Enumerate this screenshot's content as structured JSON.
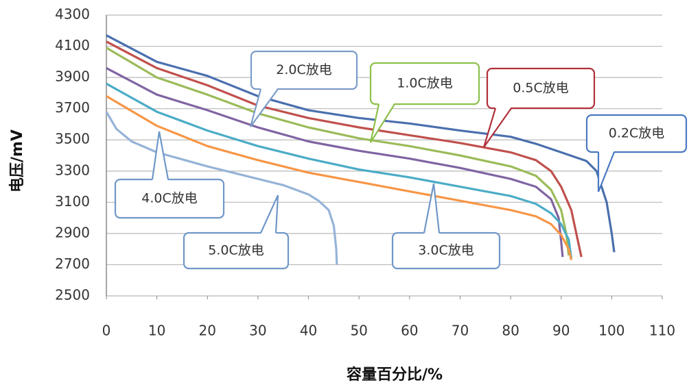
{
  "chart_data": {
    "type": "line",
    "x_label": "容量百分比/%",
    "y_label": "电压/mV",
    "xlim": [
      0,
      110
    ],
    "xticks": [
      0,
      10,
      20,
      30,
      40,
      50,
      60,
      70,
      80,
      90,
      100,
      110
    ],
    "ylim": [
      2500,
      4300
    ],
    "yticks": [
      2500,
      2700,
      2900,
      3100,
      3300,
      3500,
      3700,
      3900,
      4100,
      4300
    ],
    "grid": true,
    "series": [
      {
        "name": "0.2C放电",
        "color": "#4a6fae",
        "callout_color": "#4a78c0",
        "x": [
          0,
          10,
          20,
          30,
          40,
          50,
          60,
          70,
          80,
          85,
          90,
          95,
          97,
          98,
          99,
          100,
          100.5
        ],
        "values": [
          4170,
          4000,
          3910,
          3780,
          3690,
          3640,
          3605,
          3560,
          3520,
          3475,
          3420,
          3365,
          3300,
          3200,
          3100,
          2900,
          2780
        ]
      },
      {
        "name": "0.5C放电",
        "color": "#c0504d",
        "callout_color": "#b0303a",
        "x": [
          0,
          10,
          20,
          30,
          40,
          50,
          60,
          70,
          80,
          85,
          88,
          90,
          92,
          93,
          94
        ],
        "values": [
          4130,
          3960,
          3850,
          3720,
          3640,
          3580,
          3530,
          3480,
          3420,
          3370,
          3300,
          3200,
          3050,
          2900,
          2750
        ]
      },
      {
        "name": "1.0C放电",
        "color": "#9bbb59",
        "callout_color": "#8cc04a",
        "x": [
          0,
          10,
          20,
          30,
          40,
          50,
          60,
          70,
          80,
          85,
          88,
          90,
          91,
          91.5
        ],
        "values": [
          4090,
          3900,
          3790,
          3670,
          3580,
          3510,
          3460,
          3400,
          3330,
          3270,
          3180,
          3050,
          2900,
          2760
        ]
      },
      {
        "name": "2.0C放电",
        "color": "#8064a2",
        "callout_color": "#7a9cc8",
        "x": [
          0,
          10,
          20,
          30,
          40,
          50,
          60,
          70,
          80,
          85,
          88,
          89.5,
          90,
          90.3
        ],
        "values": [
          3960,
          3790,
          3690,
          3580,
          3490,
          3430,
          3380,
          3320,
          3250,
          3200,
          3120,
          3000,
          2850,
          2750
        ]
      },
      {
        "name": "3.0C放电",
        "color": "#4bacc6",
        "callout_color": "#6f97c8",
        "x": [
          0,
          10,
          20,
          30,
          40,
          50,
          60,
          70,
          80,
          85,
          88,
          90,
          91.5,
          92
        ],
        "values": [
          3860,
          3680,
          3560,
          3460,
          3380,
          3310,
          3260,
          3200,
          3140,
          3090,
          3030,
          2960,
          2860,
          2740
        ]
      },
      {
        "name": "4.0C放电",
        "color": "#f79646",
        "callout_color": "#6f97c8",
        "x": [
          0,
          10,
          20,
          30,
          40,
          50,
          60,
          70,
          80,
          85,
          88,
          90,
          91.5,
          92
        ],
        "values": [
          3780,
          3590,
          3460,
          3370,
          3290,
          3230,
          3170,
          3110,
          3050,
          3010,
          2960,
          2890,
          2800,
          2730
        ]
      },
      {
        "name": "5.0C放电",
        "color": "#95b3d7",
        "callout_color": "#6f97c8",
        "x": [
          0,
          2,
          5,
          10,
          20,
          30,
          35,
          40,
          42,
          44,
          45,
          45.5,
          45.6
        ],
        "values": [
          3680,
          3570,
          3490,
          3420,
          3330,
          3250,
          3210,
          3150,
          3110,
          3050,
          2950,
          2800,
          2700
        ]
      }
    ]
  }
}
